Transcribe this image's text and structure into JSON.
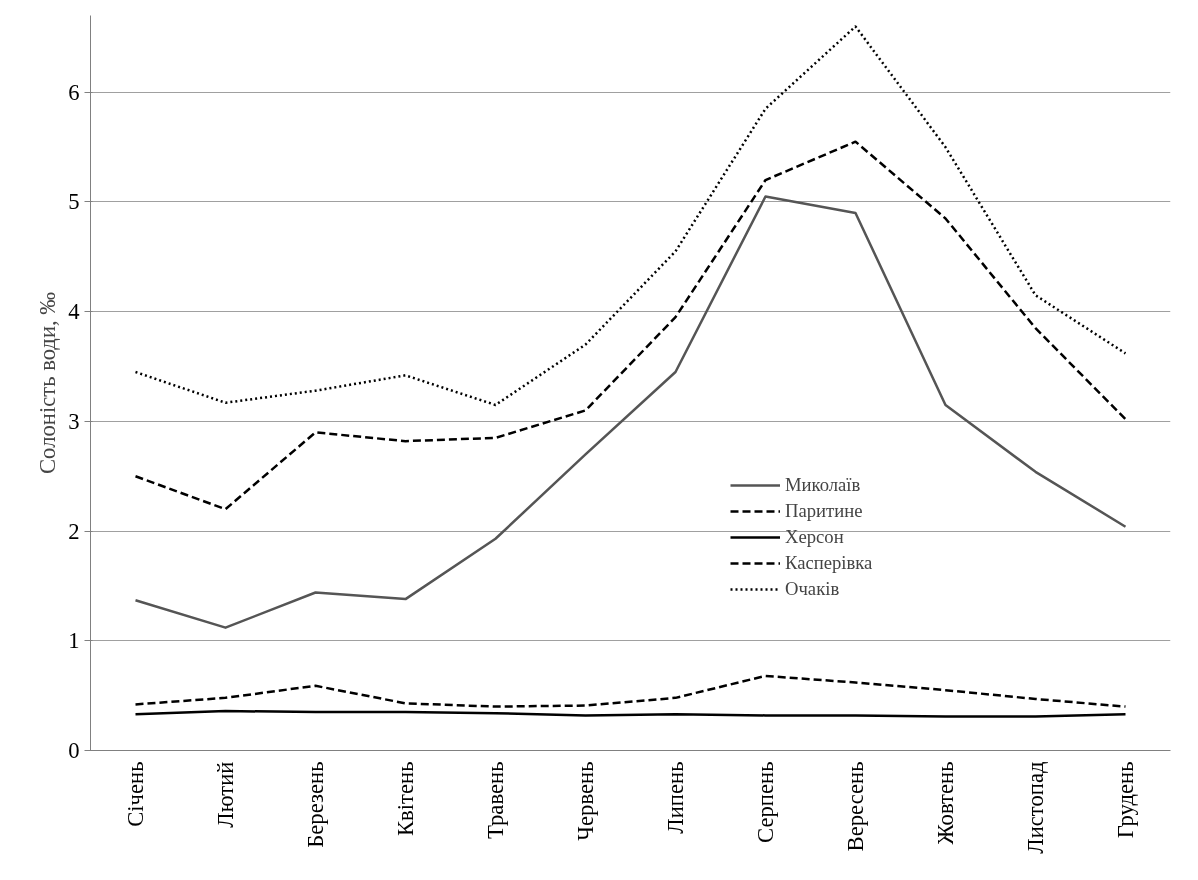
{
  "chart_data": {
    "type": "line",
    "ylabel": "Солоність води, ‰",
    "categories": [
      "Січень",
      "Лютий",
      "Березень",
      "Квітень",
      "Травень",
      "Червень",
      "Липень",
      "Серпень",
      "Вересень",
      "Жовтень",
      "Листопад",
      "Грудень"
    ],
    "series": [
      {
        "name": "Миколаїв",
        "color": "#555555",
        "line_style": "solid",
        "values": [
          1.37,
          1.12,
          1.44,
          1.38,
          1.93,
          2.7,
          3.45,
          5.05,
          4.9,
          3.15,
          2.54,
          2.04
        ]
      },
      {
        "name": "Паритине",
        "color": "#000000",
        "line_style": "dashed",
        "values": [
          2.5,
          2.2,
          2.9,
          2.82,
          2.85,
          3.1,
          3.95,
          5.2,
          5.55,
          4.85,
          3.85,
          3.02
        ]
      },
      {
        "name": "Херсон",
        "color": "#000000",
        "line_style": "solid",
        "values": [
          0.33,
          0.36,
          0.35,
          0.35,
          0.34,
          0.32,
          0.33,
          0.32,
          0.32,
          0.31,
          0.31,
          0.33
        ]
      },
      {
        "name": "Касперівка",
        "color": "#000000",
        "line_style": "dashed",
        "values": [
          0.42,
          0.48,
          0.59,
          0.43,
          0.4,
          0.41,
          0.48,
          0.68,
          0.62,
          0.55,
          0.47,
          0.4
        ]
      },
      {
        "name": "Очаків",
        "color": "#000000",
        "line_style": "dotted",
        "values": [
          3.45,
          3.17,
          3.28,
          3.42,
          3.15,
          3.7,
          4.55,
          5.85,
          6.6,
          5.5,
          4.15,
          3.62
        ]
      }
    ],
    "ylim": [
      0,
      6.7
    ],
    "yticks": [
      0,
      1,
      2,
      3,
      4,
      5,
      6
    ],
    "grid": "y",
    "legend": "right",
    "marker": "none"
  }
}
